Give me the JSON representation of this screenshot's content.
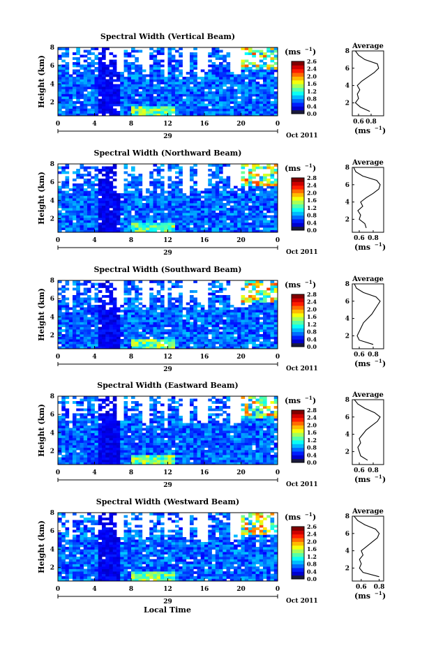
{
  "figure": {
    "bottom_xlabel": "Local Time"
  },
  "chart_data": [
    {
      "type": "heatmap",
      "title": "Spectral Width (Vertical Beam)",
      "ylabel": "Height (km)",
      "ylim": [
        0.5,
        8
      ],
      "yticks": [
        "2",
        "4",
        "6",
        "8"
      ],
      "xlim": [
        0,
        24
      ],
      "xticks": [
        "0",
        "4",
        "8",
        "12",
        "16",
        "20",
        "0"
      ],
      "date_day": "29",
      "date_month_year": "Oct 2011",
      "colorbar": {
        "unit": "(ms",
        "unit_exp": "−1",
        "unit_close": ")",
        "min": 0,
        "max": 2.8,
        "ticks": [
          "0.0",
          "0.4",
          "0.8",
          "1.2",
          "1.6",
          "2.0",
          "2.4",
          "2.6"
        ]
      },
      "average_profile": {
        "title": "Average",
        "xlabel": "(ms",
        "xlabel_exp": "−1",
        "xlabel_close": ")",
        "xticks": [
          "0.6",
          "0.8"
        ],
        "xlim": [
          0.5,
          1.0
        ],
        "ylim": [
          0.5,
          8
        ],
        "yticks": [
          "2",
          "4",
          "6",
          "8"
        ],
        "heights": [
          1.0,
          1.5,
          2.0,
          2.5,
          3.0,
          3.5,
          4.0,
          4.5,
          5.0,
          5.5,
          6.0,
          6.5,
          7.0,
          7.5,
          8.0
        ],
        "values": [
          0.78,
          0.63,
          0.55,
          0.6,
          0.58,
          0.62,
          0.58,
          0.65,
          0.75,
          0.85,
          0.92,
          0.9,
          0.7,
          0.6,
          0.55
        ]
      }
    },
    {
      "type": "heatmap",
      "title": "Spectral Width (Northward Beam)",
      "ylabel": "Height (km)",
      "ylim": [
        0.5,
        8
      ],
      "yticks": [
        "2",
        "4",
        "6",
        "8"
      ],
      "xlim": [
        0,
        24
      ],
      "xticks": [
        "0",
        "4",
        "8",
        "12",
        "16",
        "20",
        "0"
      ],
      "date_day": "29",
      "date_month_year": "Oct 2011",
      "colorbar": {
        "unit": "(ms",
        "unit_exp": "−1",
        "unit_close": ")",
        "min": 0,
        "max": 2.8,
        "ticks": [
          "0.0",
          "0.4",
          "0.8",
          "1.2",
          "1.6",
          "2.0",
          "2.4",
          "2.8"
        ]
      },
      "average_profile": {
        "title": "Average",
        "xlabel": "(ms",
        "xlabel_exp": "−1",
        "xlabel_close": ")",
        "xticks": [
          "0.6",
          "0.8"
        ],
        "xlim": [
          0.5,
          0.95
        ],
        "ylim": [
          0.5,
          8
        ],
        "yticks": [
          "2",
          "4",
          "6",
          "8"
        ],
        "heights": [
          1.0,
          1.5,
          2.0,
          2.5,
          3.0,
          3.5,
          4.0,
          4.5,
          5.0,
          5.5,
          6.0,
          6.5,
          7.0,
          7.5,
          8.0
        ],
        "values": [
          0.7,
          0.68,
          0.6,
          0.62,
          0.58,
          0.65,
          0.62,
          0.7,
          0.8,
          0.88,
          0.9,
          0.85,
          0.65,
          0.55,
          0.52
        ]
      }
    },
    {
      "type": "heatmap",
      "title": "Spectral Width (Southward Beam)",
      "ylabel": "Height (km)",
      "ylim": [
        0.5,
        8
      ],
      "yticks": [
        "2",
        "4",
        "6",
        "8"
      ],
      "xlim": [
        0,
        24
      ],
      "xticks": [
        "0",
        "4",
        "8",
        "12",
        "16",
        "20",
        "0"
      ],
      "date_day": "29",
      "date_month_year": "Oct 2011",
      "colorbar": {
        "unit": "(ms",
        "unit_exp": "−1",
        "unit_close": ")",
        "min": 0,
        "max": 2.8,
        "ticks": [
          "0.0",
          "0.4",
          "0.8",
          "1.2",
          "1.6",
          "2.0",
          "2.4",
          "2.8"
        ]
      },
      "average_profile": {
        "title": "Average",
        "xlabel": "(ms",
        "xlabel_exp": "−1",
        "xlabel_close": ")",
        "xticks": [
          "0.6",
          "0.8"
        ],
        "xlim": [
          0.5,
          0.95
        ],
        "ylim": [
          0.5,
          8
        ],
        "yticks": [
          "2",
          "4",
          "6",
          "8"
        ],
        "heights": [
          1.0,
          1.5,
          2.0,
          2.5,
          3.0,
          3.5,
          4.0,
          4.5,
          5.0,
          5.5,
          6.0,
          6.5,
          7.0,
          7.5,
          8.0
        ],
        "values": [
          0.8,
          0.6,
          0.57,
          0.6,
          0.63,
          0.66,
          0.72,
          0.78,
          0.82,
          0.86,
          0.9,
          0.84,
          0.66,
          0.56,
          0.53
        ]
      }
    },
    {
      "type": "heatmap",
      "title": "Spectral Width (Eastward Beam)",
      "ylabel": "Height (km)",
      "ylim": [
        0.5,
        8
      ],
      "yticks": [
        "2",
        "4",
        "6",
        "8"
      ],
      "xlim": [
        0,
        24
      ],
      "xticks": [
        "0",
        "4",
        "8",
        "12",
        "16",
        "20",
        "0"
      ],
      "date_day": "29",
      "date_month_year": "Oct 2011",
      "colorbar": {
        "unit": "(ms",
        "unit_exp": "−1",
        "unit_close": ")",
        "min": 0,
        "max": 2.8,
        "ticks": [
          "0.0",
          "0.4",
          "0.8",
          "1.2",
          "1.6",
          "2.0",
          "2.4",
          "2.8"
        ]
      },
      "average_profile": {
        "title": "Average",
        "xlabel": "(ms",
        "xlabel_exp": "−1",
        "xlabel_close": ")",
        "xticks": [
          "0.6",
          "0.8"
        ],
        "xlim": [
          0.5,
          0.95
        ],
        "ylim": [
          0.5,
          8
        ],
        "yticks": [
          "2",
          "4",
          "6",
          "8"
        ],
        "heights": [
          1.0,
          1.5,
          2.0,
          2.5,
          3.0,
          3.5,
          4.0,
          4.5,
          5.0,
          5.5,
          6.0,
          6.5,
          7.0,
          7.5,
          8.0
        ],
        "values": [
          0.72,
          0.62,
          0.6,
          0.58,
          0.62,
          0.6,
          0.65,
          0.7,
          0.78,
          0.86,
          0.9,
          0.82,
          0.68,
          0.58,
          0.53
        ]
      }
    },
    {
      "type": "heatmap",
      "title": "Spectral Width (Westward Beam)",
      "ylabel": "Height (km)",
      "ylim": [
        0.5,
        8
      ],
      "yticks": [
        "2",
        "4",
        "6",
        "8"
      ],
      "xlim": [
        0,
        24
      ],
      "xticks": [
        "0",
        "4",
        "8",
        "12",
        "16",
        "20",
        "0"
      ],
      "date_day": "29",
      "date_month_year": "Oct 2011",
      "colorbar": {
        "unit": "(ms",
        "unit_exp": "−1",
        "unit_close": ")",
        "min": 0,
        "max": 2.8,
        "ticks": [
          "0.0",
          "0.4",
          "0.8",
          "1.2",
          "1.6",
          "2.0",
          "2.4",
          "2.6"
        ]
      },
      "average_profile": {
        "title": "Average",
        "xlabel": "(ms",
        "xlabel_exp": "−1",
        "xlabel_close": ")",
        "xticks": [
          "0.6",
          "0.8"
        ],
        "xlim": [
          0.5,
          0.85
        ],
        "ylim": [
          0.5,
          8
        ],
        "yticks": [
          "2",
          "4",
          "6",
          "8"
        ],
        "heights": [
          1.0,
          1.5,
          2.0,
          2.5,
          3.0,
          3.5,
          4.0,
          4.5,
          5.0,
          5.5,
          6.0,
          6.5,
          7.0,
          7.5,
          8.0
        ],
        "values": [
          0.8,
          0.62,
          0.58,
          0.6,
          0.58,
          0.62,
          0.6,
          0.66,
          0.72,
          0.78,
          0.8,
          0.76,
          0.64,
          0.56,
          0.52
        ]
      }
    }
  ]
}
